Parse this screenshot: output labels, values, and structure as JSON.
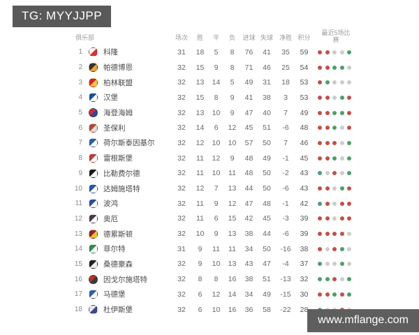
{
  "badge": {
    "text": "TG: MYYJJPP",
    "bg": "#595959"
  },
  "watermark": {
    "text": "www.mflange.com",
    "bg": "#5e5e5e"
  },
  "table": {
    "columns": {
      "club": "俱乐部",
      "played": "场次",
      "win": "胜",
      "draw": "平",
      "loss": "负",
      "gf": "进球",
      "ga": "失球",
      "gd": "净胜",
      "pts": "积分",
      "form": "最近5场比赛"
    },
    "form_colors": {
      "win": "#c0504a",
      "draw": "#cccccc",
      "loss": "#4d9e6b"
    },
    "rows": [
      {
        "rank": 1,
        "club": "科隆",
        "crest": [
          "#ffffff",
          "#d2342c"
        ],
        "played": 31,
        "win": 18,
        "draw": 5,
        "loss": 8,
        "gf": 76,
        "ga": 41,
        "gd": 35,
        "pts": 59,
        "form": [
          "win",
          "win",
          "draw",
          "draw",
          "loss"
        ]
      },
      {
        "rank": 2,
        "club": "帕德博恩",
        "crest": [
          "#333333",
          "#e8a33d"
        ],
        "played": 32,
        "win": 15,
        "draw": 9,
        "loss": 8,
        "gf": 71,
        "ga": 46,
        "gd": 25,
        "pts": 54,
        "form": [
          "win",
          "win",
          "loss",
          "loss",
          "draw"
        ]
      },
      {
        "rank": 3,
        "club": "柏林联盟",
        "crest": [
          "#d8232a",
          "#f5c843"
        ],
        "played": 32,
        "win": 13,
        "draw": 14,
        "loss": 5,
        "gf": 49,
        "ga": 31,
        "gd": 18,
        "pts": 53,
        "form": [
          "win",
          "loss",
          "draw",
          "draw",
          "draw"
        ]
      },
      {
        "rank": 4,
        "club": "汉堡",
        "crest": [
          "#1d4f9c",
          "#ffffff"
        ],
        "played": 32,
        "win": 15,
        "draw": 8,
        "loss": 9,
        "gf": 41,
        "ga": 38,
        "gd": 3,
        "pts": 53,
        "form": [
          "win",
          "win",
          "draw",
          "loss",
          "win"
        ]
      },
      {
        "rank": 5,
        "club": "海登海姆",
        "crest": [
          "#c8303b",
          "#274b9f"
        ],
        "played": 32,
        "win": 13,
        "draw": 10,
        "loss": 9,
        "gf": 47,
        "ga": 40,
        "gd": 7,
        "pts": 49,
        "form": [
          "win",
          "win",
          "loss",
          "loss",
          "win"
        ]
      },
      {
        "rank": 6,
        "club": "圣保利",
        "crest": [
          "#b5443c",
          "#e8ddd0"
        ],
        "played": 32,
        "win": 14,
        "draw": 6,
        "loss": 12,
        "gf": 45,
        "ga": 51,
        "gd": -6,
        "pts": 48,
        "form": [
          "win",
          "win",
          "loss",
          "draw",
          "win"
        ]
      },
      {
        "rank": 7,
        "club": "荷尔斯泰因基尔",
        "crest": [
          "#2b5faa",
          "#ffffff"
        ],
        "played": 32,
        "win": 12,
        "draw": 10,
        "loss": 10,
        "gf": 57,
        "ga": 50,
        "gd": 7,
        "pts": 46,
        "form": [
          "win",
          "win",
          "win",
          "draw",
          "loss"
        ]
      },
      {
        "rank": 8,
        "club": "雷根斯堡",
        "crest": [
          "#c23a3a",
          "#ffffff"
        ],
        "played": 32,
        "win": 11,
        "draw": 12,
        "loss": 9,
        "gf": 48,
        "ga": 49,
        "gd": -1,
        "pts": 45,
        "form": [
          "win",
          "win",
          "loss",
          "draw",
          "loss"
        ]
      },
      {
        "rank": 9,
        "club": "比勒费尔德",
        "crest": [
          "#1a1a1a",
          "#ffffff"
        ],
        "played": 32,
        "win": 11,
        "draw": 10,
        "loss": 11,
        "gf": 48,
        "ga": 50,
        "gd": -2,
        "pts": 43,
        "form": [
          "loss",
          "draw",
          "win",
          "draw",
          "loss"
        ]
      },
      {
        "rank": 10,
        "club": "达姆施塔特",
        "crest": [
          "#2a56a4",
          "#ffffff"
        ],
        "played": 32,
        "win": 12,
        "draw": 7,
        "loss": 13,
        "gf": 44,
        "ga": 50,
        "gd": -6,
        "pts": 43,
        "form": [
          "win",
          "win",
          "draw",
          "loss",
          "win"
        ]
      },
      {
        "rank": 11,
        "club": "波鸿",
        "crest": [
          "#2a4f9e",
          "#ffffff"
        ],
        "played": 32,
        "win": 11,
        "draw": 9,
        "loss": 12,
        "gf": 47,
        "ga": 48,
        "gd": -1,
        "pts": 42,
        "form": [
          "loss",
          "win",
          "draw",
          "win",
          "win"
        ]
      },
      {
        "rank": 12,
        "club": "奥厄",
        "crest": [
          "#4a3a4e",
          "#ffffff"
        ],
        "played": 32,
        "win": 11,
        "draw": 6,
        "loss": 15,
        "gf": 42,
        "ga": 45,
        "gd": -3,
        "pts": 39,
        "form": [
          "win",
          "win",
          "draw",
          "win",
          "win"
        ]
      },
      {
        "rank": 13,
        "club": "德累斯顿",
        "crest": [
          "#8c2430",
          "#f2c230"
        ],
        "played": 32,
        "win": 10,
        "draw": 9,
        "loss": 13,
        "gf": 38,
        "ga": 44,
        "gd": -6,
        "pts": 39,
        "form": [
          "win",
          "win",
          "win",
          "win",
          "draw"
        ]
      },
      {
        "rank": 14,
        "club": "菲尔特",
        "crest": [
          "#2f8f4e",
          "#ffffff"
        ],
        "played": 31,
        "win": 9,
        "draw": 11,
        "loss": 11,
        "gf": 34,
        "ga": 50,
        "gd": -16,
        "pts": 38,
        "form": [
          "win",
          "draw",
          "win",
          "loss",
          "draw"
        ]
      },
      {
        "rank": 15,
        "club": "桑德豪森",
        "crest": [
          "#222222",
          "#f0f0f0"
        ],
        "played": 32,
        "win": 9,
        "draw": 10,
        "loss": 13,
        "gf": 43,
        "ga": 47,
        "gd": -4,
        "pts": 37,
        "form": [
          "loss",
          "draw",
          "draw",
          "loss",
          "draw"
        ]
      },
      {
        "rank": 16,
        "club": "因戈尔施塔特",
        "crest": [
          "#b5342e",
          "#3a3a3a"
        ],
        "played": 32,
        "win": 8,
        "draw": 8,
        "loss": 16,
        "gf": 38,
        "ga": 51,
        "gd": -13,
        "pts": 32,
        "form": [
          "loss",
          "loss",
          "win",
          "draw",
          "loss"
        ]
      },
      {
        "rank": 17,
        "club": "马德堡",
        "crest": [
          "#2f5fa8",
          "#ffffff"
        ],
        "played": 32,
        "win": 6,
        "draw": 12,
        "loss": 14,
        "gf": 34,
        "ga": 49,
        "gd": -15,
        "pts": 30,
        "form": [
          "win",
          "win",
          "loss",
          "win",
          "loss"
        ]
      },
      {
        "rank": 18,
        "club": "杜伊斯堡",
        "crest": [
          "#e8e8e8",
          "#3a4a8c"
        ],
        "played": 32,
        "win": 6,
        "draw": 10,
        "loss": 16,
        "gf": 36,
        "ga": 58,
        "gd": -22,
        "pts": 28,
        "form": [
          "loss",
          "draw",
          "draw",
          "win",
          "draw"
        ]
      }
    ]
  }
}
